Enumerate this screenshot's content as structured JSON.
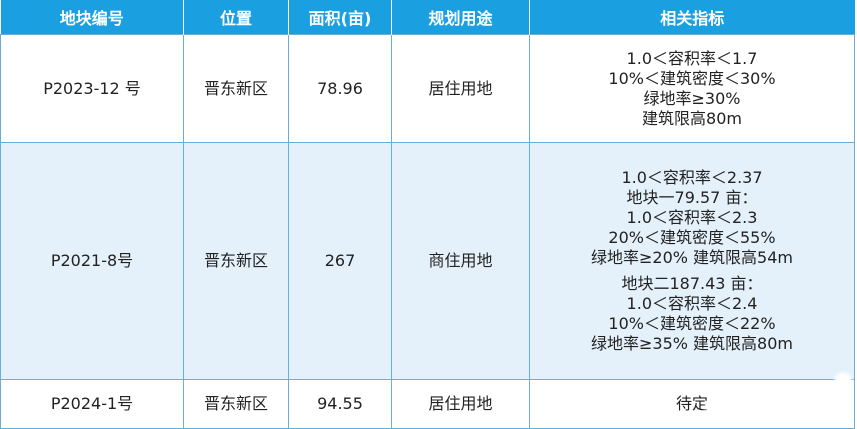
{
  "headers": [
    "地块编号",
    "位置",
    "面积(亩)",
    "规划用途",
    "相关指标"
  ],
  "rows": [
    {
      "id": "P2023-12 号",
      "location": "晋东新区",
      "area": "78.96",
      "use": "居住用地",
      "metrics": [
        "1.0＜容积率＜1.7",
        "10%＜建筑密度＜30%",
        "绿地率≥30%",
        "建筑限高80m"
      ]
    },
    {
      "id": "P2021-8号",
      "location": "晋东新区",
      "area": "267",
      "use": "商住用地",
      "metrics": [
        "1.0＜容积率＜2.37",
        "地块一79.57 亩：",
        "1.0＜容积率＜2.3",
        "20%＜建筑密度＜55%",
        "绿地率≥20%  建筑限高54m",
        "地块二187.43 亩：",
        "1.0＜容积率＜2.4",
        "10%＜建筑密度＜22%",
        "绿地率≥35%  建筑限高80m"
      ]
    },
    {
      "id": "P2024-1号",
      "location": "晋东新区",
      "area": "94.55",
      "use": "居住用地",
      "metrics": [
        "待定"
      ]
    }
  ]
}
